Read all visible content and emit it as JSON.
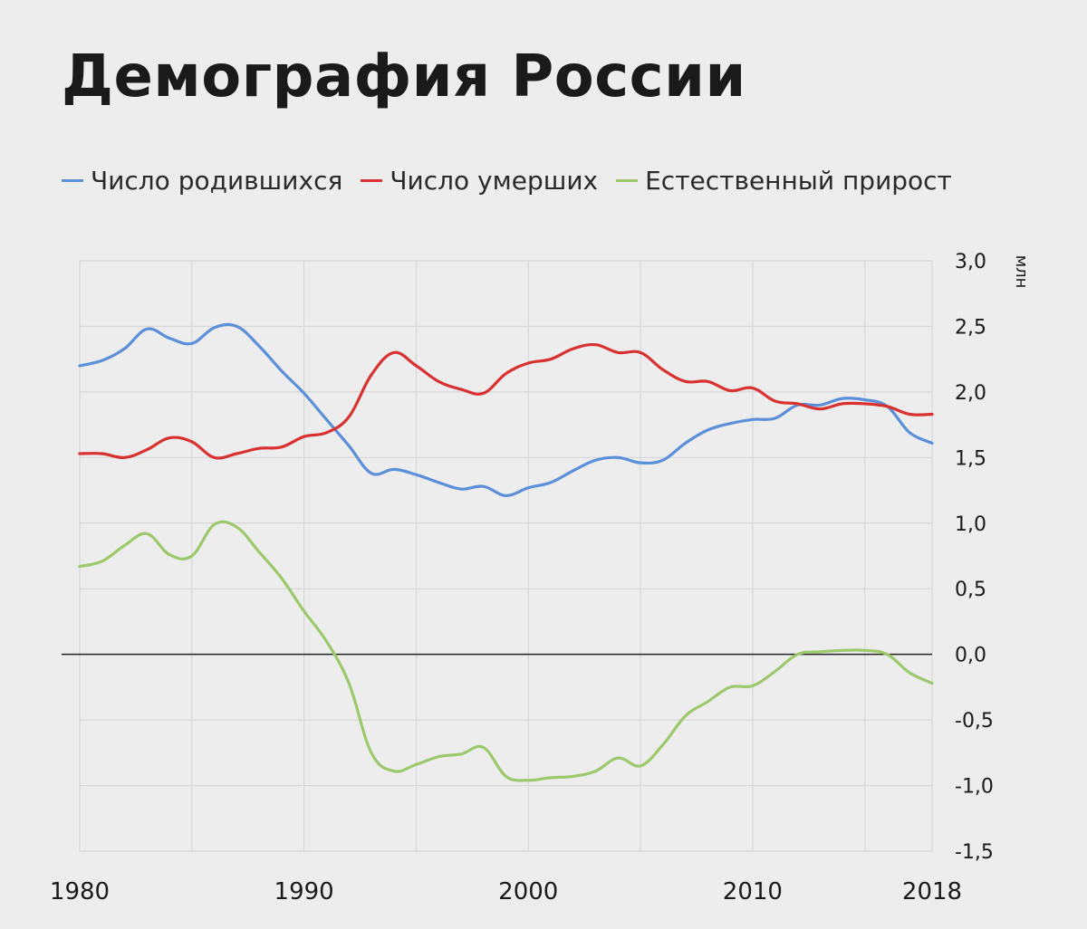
{
  "page": {
    "title": "Демография России"
  },
  "chart_data": {
    "type": "line",
    "title": "Демография России",
    "ylabel": "млн",
    "xlim": [
      1980,
      2018
    ],
    "ylim": [
      -1.5,
      3.0
    ],
    "grid": true,
    "legend_position": "top",
    "x_tick_values": [
      1980,
      1990,
      2000,
      2010,
      2018
    ],
    "x_tick_labels": [
      "1980",
      "1990",
      "2000",
      "2010",
      "2018"
    ],
    "y_tick_values": [
      3.0,
      2.5,
      2.0,
      1.5,
      1.0,
      0.5,
      0.0,
      -0.5,
      -1.0,
      -1.5
    ],
    "y_tick_labels": [
      "3,0",
      "2,5",
      "2,0",
      "1,5",
      "1,0",
      "0,5",
      "0,0",
      "-0,5",
      "-1,0",
      "-1,5"
    ],
    "x": [
      1980,
      1981,
      1982,
      1983,
      1984,
      1985,
      1986,
      1987,
      1988,
      1989,
      1990,
      1991,
      1992,
      1993,
      1994,
      1995,
      1996,
      1997,
      1998,
      1999,
      2000,
      2001,
      2002,
      2003,
      2004,
      2005,
      2006,
      2007,
      2008,
      2009,
      2010,
      2011,
      2012,
      2013,
      2014,
      2015,
      2016,
      2017,
      2018
    ],
    "series": [
      {
        "name": "Число родившихся",
        "color": "#5b8fd9",
        "values": [
          2.2,
          2.24,
          2.33,
          2.48,
          2.41,
          2.37,
          2.49,
          2.5,
          2.35,
          2.16,
          1.99,
          1.79,
          1.59,
          1.38,
          1.41,
          1.37,
          1.31,
          1.26,
          1.28,
          1.21,
          1.27,
          1.31,
          1.4,
          1.48,
          1.5,
          1.46,
          1.48,
          1.61,
          1.71,
          1.76,
          1.79,
          1.8,
          1.9,
          1.9,
          1.95,
          1.94,
          1.89,
          1.69,
          1.61
        ]
      },
      {
        "name": "Число умерших",
        "color": "#d93030",
        "values": [
          1.53,
          1.53,
          1.5,
          1.56,
          1.65,
          1.62,
          1.5,
          1.53,
          1.57,
          1.58,
          1.66,
          1.69,
          1.81,
          2.13,
          2.3,
          2.2,
          2.08,
          2.02,
          1.99,
          2.14,
          2.22,
          2.25,
          2.33,
          2.36,
          2.3,
          2.3,
          2.17,
          2.08,
          2.08,
          2.01,
          2.03,
          1.93,
          1.91,
          1.87,
          1.91,
          1.91,
          1.89,
          1.83,
          1.83
        ]
      },
      {
        "name": "Естественный прирост",
        "color": "#9cc96b",
        "values": [
          0.67,
          0.71,
          0.83,
          0.92,
          0.76,
          0.75,
          0.99,
          0.97,
          0.78,
          0.58,
          0.33,
          0.1,
          -0.22,
          -0.75,
          -0.89,
          -0.84,
          -0.78,
          -0.76,
          -0.71,
          -0.93,
          -0.96,
          -0.94,
          -0.93,
          -0.89,
          -0.79,
          -0.85,
          -0.69,
          -0.47,
          -0.36,
          -0.25,
          -0.24,
          -0.13,
          0.0,
          0.02,
          0.03,
          0.03,
          0.0,
          -0.14,
          -0.22
        ]
      }
    ]
  }
}
